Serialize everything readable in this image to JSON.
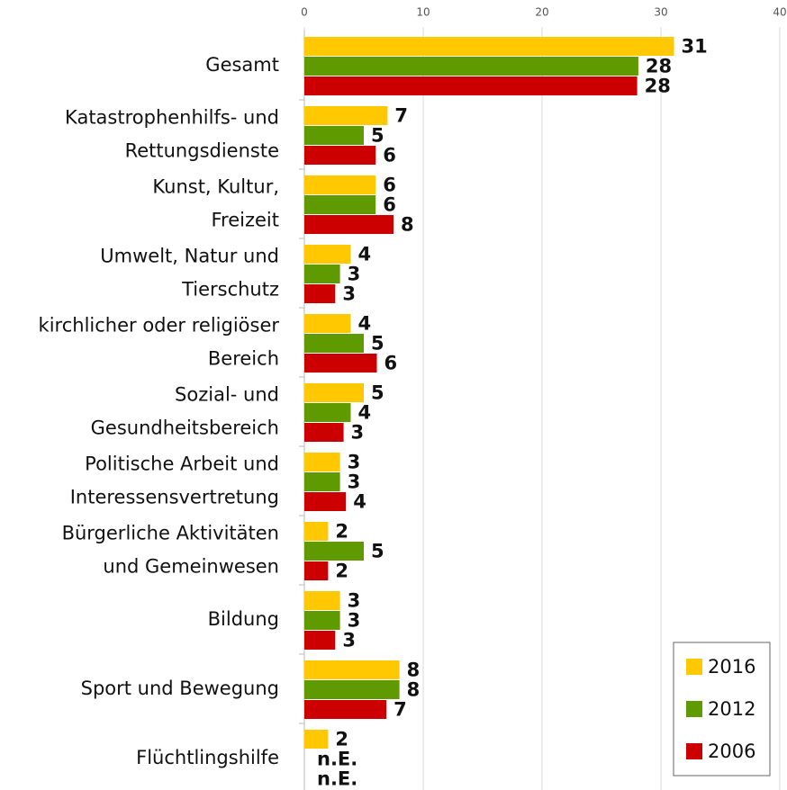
{
  "chart_data": {
    "type": "bar",
    "orientation": "horizontal",
    "categories": [
      [
        "Gesamt"
      ],
      [
        "Katastrophenhilfs- und",
        "Rettungsdienste"
      ],
      [
        "Kunst, Kultur,",
        "Freizeit"
      ],
      [
        "Umwelt, Natur und",
        "Tierschutz"
      ],
      [
        "kirchlicher oder religiöser",
        "Bereich"
      ],
      [
        "Sozial- und",
        "Gesundheitsbereich"
      ],
      [
        "Politische Arbeit und",
        "Interessensvertretung"
      ],
      [
        "Bürgerliche Aktivitäten",
        "und Gemeinwesen"
      ],
      [
        "Bildung"
      ],
      [
        "Sport und Bewegung"
      ],
      [
        "Flüchtlingshilfe"
      ]
    ],
    "series": [
      {
        "name": "2016",
        "color": "#ffc800",
        "values": [
          31.1,
          7.0,
          6.0,
          3.9,
          3.9,
          5.0,
          3.0,
          2.0,
          3.0,
          8.0,
          2.0
        ],
        "value_labels": [
          "31",
          "7",
          "6",
          "4",
          "4",
          "5",
          "3",
          "2",
          "3",
          "8",
          "2"
        ]
      },
      {
        "name": "2012",
        "color": "#5f9a00",
        "values": [
          28.1,
          5.0,
          6.0,
          3.0,
          5.0,
          3.9,
          3.0,
          5.0,
          3.0,
          8.0,
          null
        ],
        "value_labels": [
          "28",
          "5",
          "6",
          "3",
          "5",
          "4",
          "3",
          "5",
          "3",
          "8",
          "n.E."
        ]
      },
      {
        "name": "2006",
        "color": "#cc0000",
        "values": [
          28.0,
          6.0,
          7.5,
          2.6,
          6.1,
          3.3,
          3.5,
          2.0,
          2.6,
          6.9,
          null
        ],
        "value_labels": [
          "28",
          "6",
          "8",
          "3",
          "6",
          "3",
          "4",
          "2",
          "3",
          "7",
          "n.E."
        ]
      }
    ],
    "xlim": [
      0,
      40
    ],
    "xticks": [
      0,
      10,
      20,
      30,
      40
    ],
    "grid": true,
    "legend": "lower right"
  }
}
